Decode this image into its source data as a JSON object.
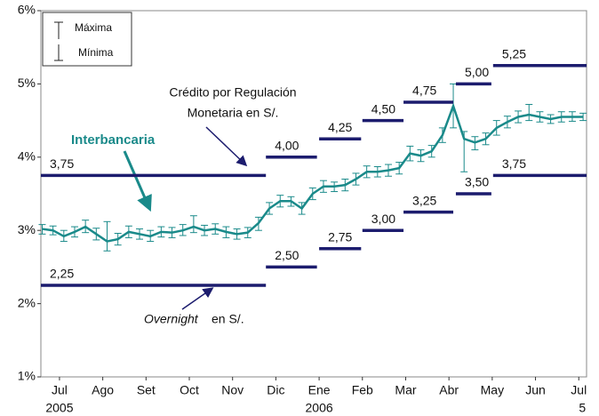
{
  "chart_data": {
    "type": "step-range",
    "xlim": [
      -0.43,
      12.18
    ],
    "xticks": [
      {
        "value": 0,
        "label": "Jul"
      },
      {
        "value": 1,
        "label": "Ago"
      },
      {
        "value": 2,
        "label": "Set"
      },
      {
        "value": 3,
        "label": "Oct"
      },
      {
        "value": 4,
        "label": "Nov"
      },
      {
        "value": 5,
        "label": "Dic"
      },
      {
        "value": 6,
        "label": "Ene"
      },
      {
        "value": 7,
        "label": "Feb"
      },
      {
        "value": 8,
        "label": "Mar"
      },
      {
        "value": 9,
        "label": "Abr"
      },
      {
        "value": 10,
        "label": "May"
      },
      {
        "value": 11,
        "label": "Jun"
      },
      {
        "value": 12,
        "label": "Jul"
      }
    ],
    "xsublabels": [
      {
        "value": 0,
        "label": "2005"
      },
      {
        "value": 6,
        "label": "2006"
      },
      {
        "value": 12,
        "label": "5"
      }
    ],
    "ylim": [
      1,
      6
    ],
    "yticks": [
      {
        "value": 1,
        "label": "1%"
      },
      {
        "value": 2,
        "label": "2%"
      },
      {
        "value": 3,
        "label": "3%"
      },
      {
        "value": 4,
        "label": "4%"
      },
      {
        "value": 5,
        "label": "5%"
      },
      {
        "value": 6,
        "label": "6%"
      }
    ],
    "legend": [
      "Máxima",
      "Mínima"
    ],
    "annotations": {
      "credito": [
        "Crédito por Regulación",
        "Monetaria en S/."
      ],
      "interbancaria": "Interbancaria",
      "overnight": [
        "Overnight",
        "en S/."
      ]
    },
    "steps": [
      {
        "color": "#1c1c6e",
        "segments": [
          {
            "x": [
              -0.43,
              4.77
            ],
            "value": 3.75,
            "label": "3,75"
          },
          {
            "x": [
              4.77,
              5.95
            ],
            "value": 4.0,
            "label": "4,00"
          },
          {
            "x": [
              6.0,
              6.97
            ],
            "value": 4.25,
            "label": "4,25"
          },
          {
            "x": [
              7.0,
              7.95
            ],
            "value": 4.5,
            "label": "4,50"
          },
          {
            "x": [
              7.95,
              9.1
            ],
            "value": 4.75,
            "label": "4,75"
          },
          {
            "x": [
              9.16,
              9.98
            ],
            "value": 5.0,
            "label": "5,00"
          },
          {
            "x": [
              10.02,
              12.18
            ],
            "value": 5.25,
            "label": "5,25"
          }
        ]
      },
      {
        "color": "#1c1c6e",
        "segments": [
          {
            "x": [
              -0.43,
              4.77
            ],
            "value": 2.25,
            "label": "2,25"
          },
          {
            "x": [
              4.77,
              5.95
            ],
            "value": 2.5,
            "label": "2,50"
          },
          {
            "x": [
              6.0,
              6.97
            ],
            "value": 2.75,
            "label": "2,75"
          },
          {
            "x": [
              7.0,
              7.95
            ],
            "value": 3.0,
            "label": "3,00"
          },
          {
            "x": [
              7.95,
              9.1
            ],
            "value": 3.25,
            "label": "3,25"
          },
          {
            "x": [
              9.16,
              9.98
            ],
            "value": 3.5,
            "label": "3,50"
          },
          {
            "x": [
              10.02,
              12.18
            ],
            "value": 3.75,
            "label": "3,75"
          }
        ]
      }
    ],
    "series": [
      {
        "name": "Interbancaria",
        "color": "#1a8a8a",
        "x": [
          -0.4,
          -0.15,
          0.1,
          0.35,
          0.6,
          0.85,
          1.1,
          1.35,
          1.6,
          1.85,
          2.1,
          2.35,
          2.6,
          2.85,
          3.1,
          3.35,
          3.6,
          3.85,
          4.1,
          4.35,
          4.6,
          4.85,
          5.1,
          5.35,
          5.6,
          5.85,
          6.1,
          6.35,
          6.6,
          6.85,
          7.1,
          7.35,
          7.6,
          7.85,
          8.1,
          8.35,
          8.6,
          8.85,
          9.1,
          9.35,
          9.6,
          9.85,
          10.1,
          10.35,
          10.6,
          10.85,
          11.1,
          11.35,
          11.6,
          11.85,
          12.1
        ],
        "values": [
          3.02,
          3.0,
          2.92,
          2.98,
          3.05,
          2.95,
          2.85,
          2.88,
          2.98,
          2.95,
          2.92,
          2.98,
          2.97,
          3.0,
          3.05,
          3.0,
          3.02,
          2.98,
          2.95,
          2.97,
          3.1,
          3.3,
          3.4,
          3.4,
          3.3,
          3.5,
          3.6,
          3.6,
          3.62,
          3.7,
          3.8,
          3.8,
          3.82,
          3.85,
          4.05,
          4.02,
          4.08,
          4.3,
          4.7,
          4.25,
          4.2,
          4.25,
          4.4,
          4.48,
          4.55,
          4.58,
          4.55,
          4.52,
          4.55,
          4.55,
          4.55
        ],
        "max": [
          3.08,
          3.06,
          3.0,
          3.05,
          3.14,
          3.03,
          3.12,
          2.96,
          3.06,
          3.02,
          3.0,
          3.05,
          3.04,
          3.08,
          3.2,
          3.07,
          3.09,
          3.05,
          3.02,
          3.04,
          3.18,
          3.38,
          3.48,
          3.46,
          3.38,
          3.58,
          3.68,
          3.66,
          3.7,
          3.78,
          3.88,
          3.87,
          3.9,
          3.93,
          4.15,
          4.1,
          4.16,
          4.4,
          5.0,
          4.35,
          4.28,
          4.33,
          4.5,
          4.56,
          4.63,
          4.72,
          4.62,
          4.58,
          4.62,
          4.62,
          4.6
        ],
        "min": [
          2.95,
          2.94,
          2.85,
          2.91,
          2.97,
          2.87,
          2.72,
          2.8,
          2.9,
          2.88,
          2.85,
          2.91,
          2.9,
          2.93,
          2.97,
          2.93,
          2.95,
          2.9,
          2.88,
          2.9,
          3.0,
          3.22,
          3.32,
          3.33,
          3.22,
          3.42,
          3.52,
          3.53,
          3.54,
          3.62,
          3.72,
          3.73,
          3.74,
          3.77,
          3.95,
          3.94,
          4.0,
          4.2,
          4.4,
          3.8,
          4.1,
          4.17,
          4.3,
          4.4,
          4.47,
          4.5,
          4.48,
          4.46,
          4.48,
          4.49,
          4.5
        ]
      }
    ]
  }
}
